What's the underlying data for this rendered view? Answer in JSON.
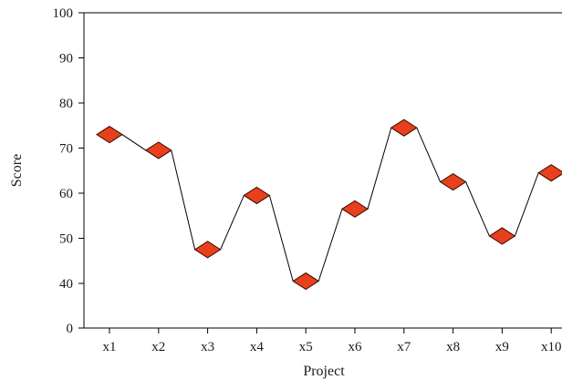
{
  "chart_data": {
    "type": "line",
    "title": "",
    "xlabel": "Project",
    "ylabel": "Score",
    "categories": [
      "x1",
      "x2",
      "x3",
      "x4",
      "x5",
      "x6",
      "x7",
      "x8",
      "x9",
      "x10"
    ],
    "series": [
      {
        "values": [
          73,
          69.5,
          47.5,
          59.5,
          40.5,
          56.5,
          74.5,
          62.5,
          50.5,
          64.5
        ]
      }
    ],
    "y_ticks": [
      0,
      40,
      50,
      60,
      70,
      80,
      90,
      100
    ],
    "y_tick_labels": [
      "0",
      "40",
      "50",
      "60",
      "70",
      "80",
      "90",
      "100"
    ],
    "y_axis_break": true,
    "grid": false,
    "legend": "none",
    "marker": "diamond",
    "marker_color": "#e8401c",
    "line_color": "#000000"
  }
}
